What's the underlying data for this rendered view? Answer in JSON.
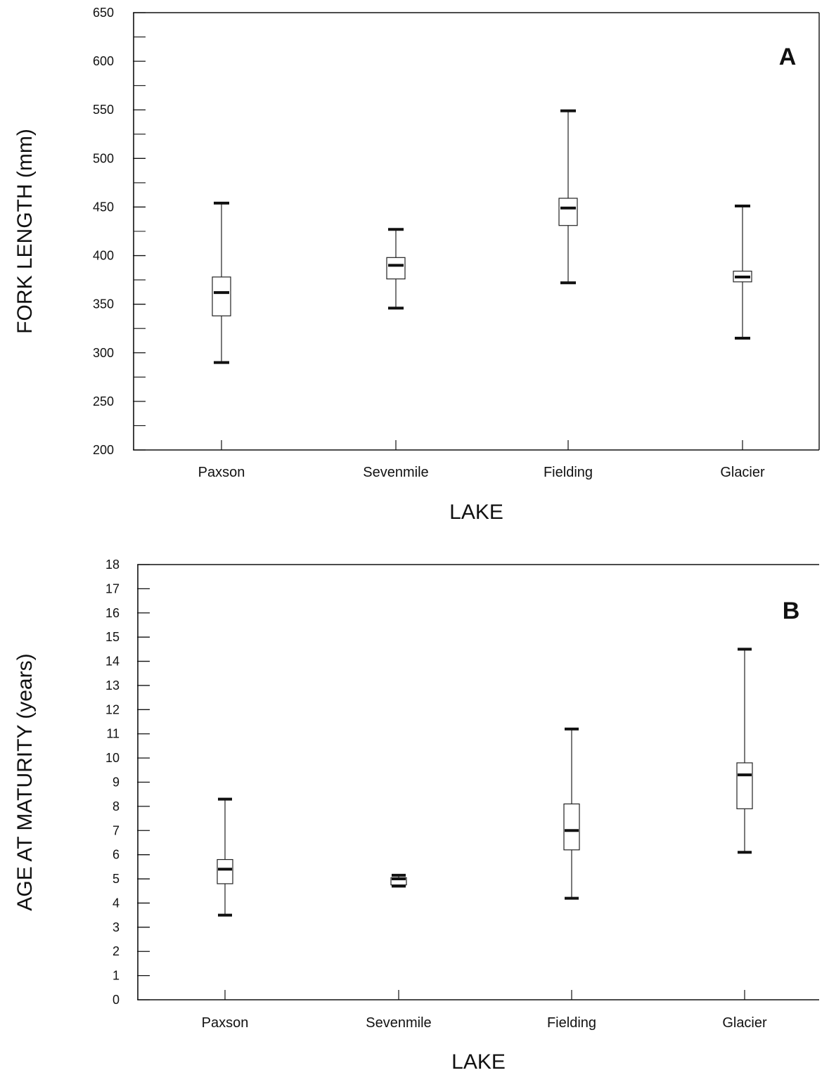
{
  "chart_data": [
    {
      "type": "box",
      "panel_label": "A",
      "xlabel": "LAKE",
      "ylabel": "FORK LENGTH (mm)",
      "ylim": [
        200,
        650
      ],
      "major_ticks": [
        200,
        250,
        300,
        350,
        400,
        450,
        500,
        550,
        600,
        650
      ],
      "minor_tick_step": 25,
      "grid": false,
      "categories": [
        "Paxson",
        "Sevenmile",
        "Fielding",
        "Glacier"
      ],
      "boxes": [
        {
          "min": 290,
          "q1": 338,
          "median": 362,
          "q3": 378,
          "max": 454
        },
        {
          "min": 346,
          "q1": 376,
          "median": 390,
          "q3": 398,
          "max": 427
        },
        {
          "min": 372,
          "q1": 431,
          "median": 449,
          "q3": 459,
          "max": 549
        },
        {
          "min": 315,
          "q1": 373,
          "median": 378,
          "q3": 384,
          "max": 451
        }
      ]
    },
    {
      "type": "box",
      "panel_label": "B",
      "xlabel": "LAKE",
      "ylabel": "AGE AT MATURITY (years)",
      "ylim": [
        0,
        18
      ],
      "major_ticks": [
        0,
        1,
        2,
        3,
        4,
        5,
        6,
        7,
        8,
        9,
        10,
        11,
        12,
        13,
        14,
        15,
        16,
        17,
        18
      ],
      "minor_tick_step": 1,
      "grid": false,
      "categories": [
        "Paxson",
        "Sevenmile",
        "Fielding",
        "Glacier"
      ],
      "boxes": [
        {
          "min": 3.5,
          "q1": 4.8,
          "median": 5.4,
          "q3": 5.8,
          "max": 8.3
        },
        {
          "min": 4.7,
          "q1": 4.75,
          "median": 5.0,
          "q3": 5.05,
          "max": 5.15
        },
        {
          "min": 4.2,
          "q1": 6.2,
          "median": 7.0,
          "q3": 8.1,
          "max": 11.2
        },
        {
          "min": 6.1,
          "q1": 7.9,
          "median": 9.3,
          "q3": 9.8,
          "max": 14.5
        }
      ]
    }
  ]
}
